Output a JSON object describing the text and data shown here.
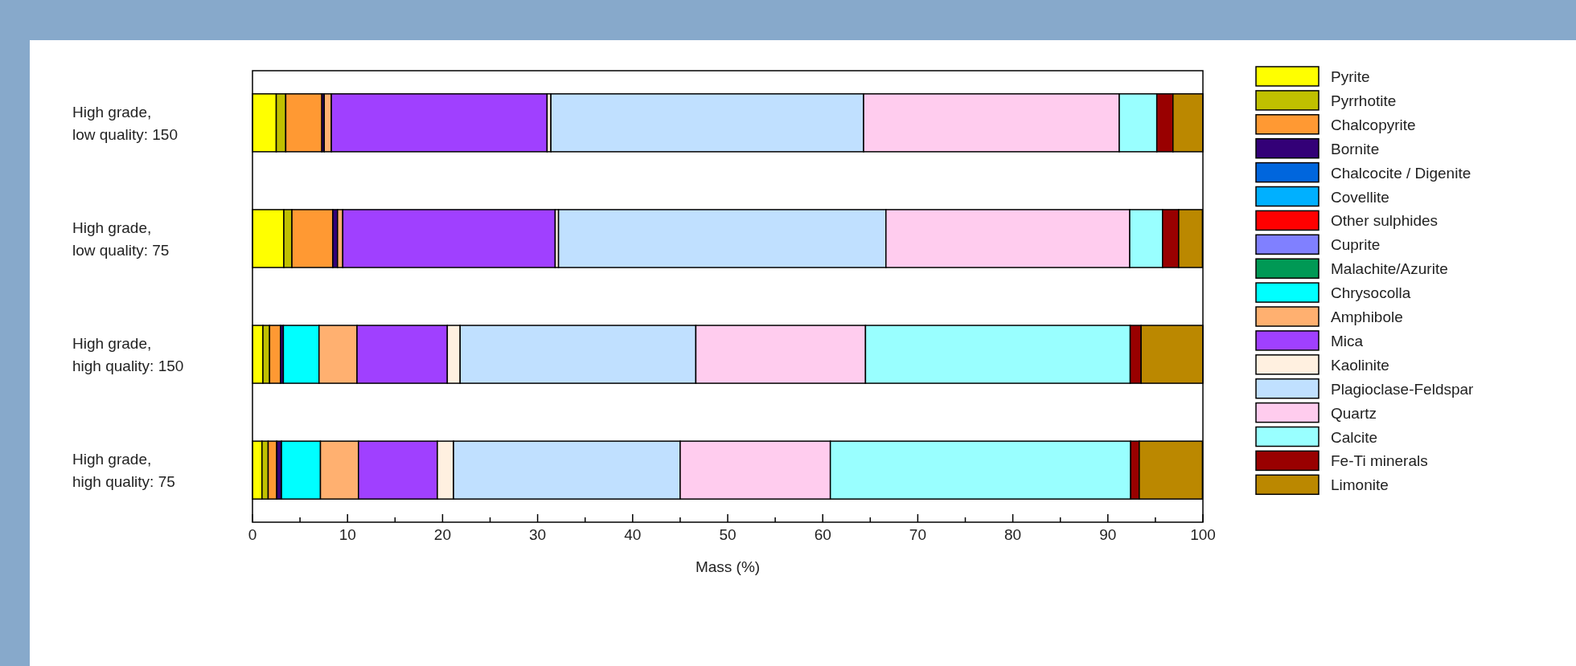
{
  "chart_data": {
    "type": "bar",
    "orientation": "horizontal",
    "stacked": true,
    "categories": [
      "High grade, low quality: 150",
      "High grade, low quality: 75",
      "High grade, high quality: 150",
      "High grade, high quality: 75"
    ],
    "series": [
      {
        "name": "Pyrite",
        "color": "#ffff00",
        "values": [
          2.5,
          3.3,
          1.1,
          1.0
        ]
      },
      {
        "name": "Pyrrhotite",
        "color": "#c0c000",
        "values": [
          1.0,
          0.85,
          0.7,
          0.65
        ]
      },
      {
        "name": "Chalcopyrite",
        "color": "#ff9933",
        "values": [
          3.8,
          4.3,
          1.15,
          0.9
        ]
      },
      {
        "name": "Bornite",
        "color": "#330077",
        "values": [
          0.25,
          0.5,
          0.3,
          0.5
        ]
      },
      {
        "name": "Chalcocite / Digenite",
        "color": "#0066dd",
        "values": [
          0,
          0,
          0,
          0
        ]
      },
      {
        "name": "Covellite",
        "color": "#00b0ff",
        "values": [
          0,
          0,
          0,
          0
        ]
      },
      {
        "name": "Other sulphides",
        "color": "#ff0000",
        "values": [
          0,
          0,
          0,
          0
        ]
      },
      {
        "name": "Cuprite",
        "color": "#8080ff",
        "values": [
          0,
          0,
          0,
          0
        ]
      },
      {
        "name": "Malachite/Azurite",
        "color": "#009955",
        "values": [
          0,
          0,
          0,
          0
        ]
      },
      {
        "name": "Chrysocolla",
        "color": "#00ffff",
        "values": [
          0,
          0,
          3.75,
          4.1
        ]
      },
      {
        "name": "Amphibole",
        "color": "#ffb070",
        "values": [
          0.75,
          0.55,
          4.0,
          4.0
        ]
      },
      {
        "name": "Mica",
        "color": "#a040ff",
        "values": [
          22.7,
          22.35,
          9.5,
          8.3
        ]
      },
      {
        "name": "Kaolinite",
        "color": "#fff0e0",
        "values": [
          0.4,
          0.35,
          1.35,
          1.7
        ]
      },
      {
        "name": "Plagioclase-Feldspar",
        "color": "#c0e0ff",
        "values": [
          32.9,
          34.45,
          24.8,
          23.85
        ]
      },
      {
        "name": "Quartz",
        "color": "#ffccee",
        "values": [
          26.9,
          25.65,
          17.85,
          15.8
        ]
      },
      {
        "name": "Calcite",
        "color": "#99ffff",
        "values": [
          3.95,
          3.45,
          27.85,
          31.6
        ]
      },
      {
        "name": "Fe-Ti minerals",
        "color": "#990000",
        "values": [
          1.7,
          1.7,
          1.15,
          0.9
        ]
      },
      {
        "name": "Limonite",
        "color": "#bb8800",
        "values": [
          3.15,
          2.5,
          6.5,
          6.65
        ]
      }
    ],
    "xlim": [
      0,
      100
    ],
    "xticks": [
      0,
      {
        "value": 5,
        "label": null
      },
      10,
      {
        "value": 15,
        "label": null
      },
      20,
      {
        "value": 25,
        "label": null
      },
      30,
      {
        "value": 35,
        "label": null
      },
      40,
      {
        "value": 45,
        "label": null
      },
      50,
      {
        "value": 55,
        "label": null
      },
      60,
      {
        "value": 65,
        "label": null
      },
      70,
      {
        "value": 75,
        "label": null
      },
      80,
      {
        "value": 85,
        "label": null
      },
      90,
      {
        "value": 95,
        "label": null
      },
      100
    ],
    "xlabel": "Mass (%)",
    "legend": "right",
    "grid": false
  }
}
